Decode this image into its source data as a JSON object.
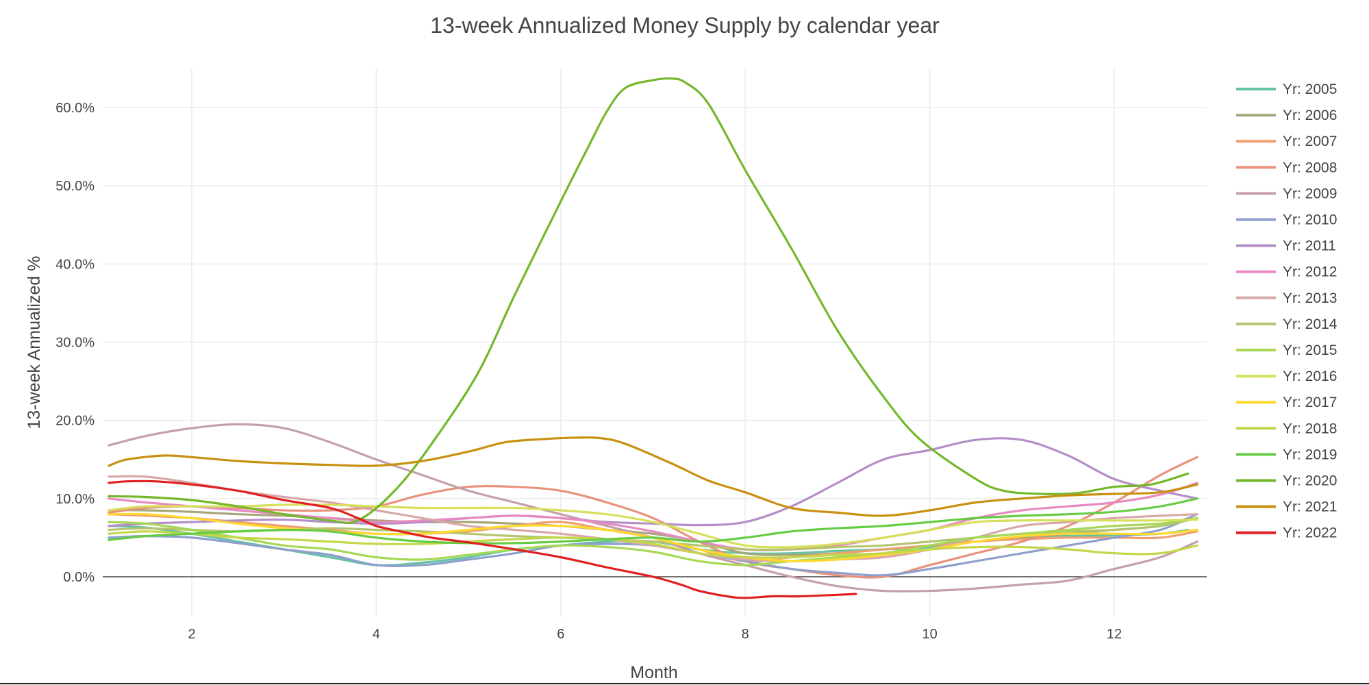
{
  "chart_data": {
    "type": "line",
    "title": "13-week Annualized Money Supply by calendar year",
    "xlabel": "Month",
    "ylabel": "13-week Annualized %",
    "xlim": [
      1.0,
      13.0
    ],
    "ylim": [
      -0.05,
      0.64
    ],
    "xticks": [
      2,
      4,
      6,
      8,
      10,
      12
    ],
    "xtick_labels": [
      "2",
      "4",
      "6",
      "8",
      "10",
      "12"
    ],
    "yticks": [
      0,
      0.1,
      0.2,
      0.3,
      0.4,
      0.5,
      0.6
    ],
    "ytick_labels": [
      "0.0%",
      "10.0%",
      "20.0%",
      "30.0%",
      "40.0%",
      "50.0%",
      "60.0%"
    ],
    "grid": true,
    "legend_position": "right",
    "series": [
      {
        "name": "Yr: 2005",
        "color": "#66c2a5",
        "x": [
          1.1,
          1.5,
          2,
          2.5,
          3,
          3.5,
          4,
          4.5,
          5,
          5.5,
          6,
          6.5,
          7,
          7.5,
          8,
          8.5,
          9,
          9.5,
          10,
          10.5,
          11,
          11.5,
          12,
          12.5,
          12.8
        ],
        "y": [
          0.065,
          0.063,
          0.055,
          0.045,
          0.035,
          0.025,
          0.015,
          0.018,
          0.025,
          0.035,
          0.04,
          0.045,
          0.045,
          0.035,
          0.03,
          0.03,
          0.033,
          0.035,
          0.038,
          0.045,
          0.05,
          0.052,
          0.053,
          0.055,
          0.06
        ]
      },
      {
        "name": "Yr: 2006",
        "color": "#a6a67b",
        "x": [
          1.1,
          1.5,
          2,
          2.5,
          3,
          3.5,
          4,
          4.5,
          5,
          5.5,
          6,
          6.5,
          7,
          7.5,
          8,
          8.5,
          9,
          9.5,
          10,
          10.5,
          11,
          11.5,
          12,
          12.5,
          12.8
        ],
        "y": [
          0.085,
          0.085,
          0.083,
          0.08,
          0.078,
          0.075,
          0.072,
          0.07,
          0.07,
          0.068,
          0.065,
          0.06,
          0.055,
          0.045,
          0.03,
          0.028,
          0.03,
          0.035,
          0.04,
          0.045,
          0.05,
          0.055,
          0.06,
          0.065,
          0.075
        ]
      },
      {
        "name": "Yr: 2007",
        "color": "#f0a070",
        "x": [
          1.1,
          1.5,
          2,
          2.5,
          3,
          3.5,
          4,
          4.5,
          5,
          5.5,
          6,
          6.5,
          7,
          7.5,
          8,
          8.5,
          9,
          9.5,
          10,
          10.5,
          11,
          11.5,
          12,
          12.5,
          12.9
        ],
        "y": [
          0.08,
          0.078,
          0.075,
          0.07,
          0.065,
          0.06,
          0.055,
          0.055,
          0.058,
          0.065,
          0.07,
          0.06,
          0.05,
          0.035,
          0.02,
          0.025,
          0.03,
          0.035,
          0.04,
          0.045,
          0.048,
          0.05,
          0.05,
          0.05,
          0.058
        ]
      },
      {
        "name": "Yr: 2008",
        "color": "#e8927c",
        "x": [
          1.1,
          1.5,
          2,
          2.5,
          3,
          3.5,
          4,
          4.5,
          5,
          5.5,
          6,
          6.5,
          7,
          7.5,
          8,
          8.5,
          9,
          9.5,
          10,
          10.5,
          11,
          11.5,
          12,
          12.5,
          12.9
        ],
        "y": [
          0.082,
          0.088,
          0.09,
          0.088,
          0.085,
          0.085,
          0.09,
          0.105,
          0.115,
          0.115,
          0.11,
          0.095,
          0.075,
          0.045,
          0.02,
          0.01,
          0.002,
          0.0,
          0.015,
          0.03,
          0.045,
          0.065,
          0.095,
          0.13,
          0.153
        ]
      },
      {
        "name": "Yr: 2009",
        "color": "#c4a0a8",
        "x": [
          1.1,
          1.5,
          2,
          2.5,
          3,
          3.5,
          4,
          4.5,
          5,
          5.5,
          6,
          6.5,
          7,
          7.5,
          8,
          8.5,
          9,
          9.5,
          10,
          10.5,
          11,
          11.5,
          12,
          12.5,
          12.9
        ],
        "y": [
          0.168,
          0.18,
          0.19,
          0.195,
          0.19,
          0.172,
          0.15,
          0.13,
          0.11,
          0.095,
          0.08,
          0.065,
          0.05,
          0.03,
          0.015,
          0.0,
          -0.012,
          -0.018,
          -0.018,
          -0.015,
          -0.01,
          -0.005,
          0.01,
          0.025,
          0.045
        ]
      },
      {
        "name": "Yr: 2010",
        "color": "#8da0cb",
        "x": [
          1.1,
          1.5,
          2,
          2.5,
          3,
          3.5,
          4,
          4.5,
          5,
          5.5,
          6,
          6.5,
          7,
          7.5,
          8,
          8.5,
          9,
          9.5,
          10,
          10.5,
          11,
          11.5,
          12,
          12.5,
          12.9
        ],
        "y": [
          0.05,
          0.052,
          0.05,
          0.043,
          0.035,
          0.028,
          0.015,
          0.015,
          0.022,
          0.03,
          0.04,
          0.042,
          0.04,
          0.03,
          0.02,
          0.01,
          0.005,
          0.002,
          0.01,
          0.02,
          0.03,
          0.04,
          0.05,
          0.06,
          0.08
        ]
      },
      {
        "name": "Yr: 2011",
        "color": "#b48ec8",
        "x": [
          1.1,
          1.5,
          2,
          2.5,
          3,
          3.5,
          4,
          4.5,
          5,
          5.5,
          6,
          6.5,
          7,
          7.5,
          8,
          8.5,
          9,
          9.5,
          10,
          10.5,
          11,
          11.5,
          12,
          12.5,
          12.9
        ],
        "y": [
          0.065,
          0.068,
          0.07,
          0.072,
          0.073,
          0.07,
          0.068,
          0.07,
          0.075,
          0.078,
          0.075,
          0.07,
          0.068,
          0.066,
          0.07,
          0.09,
          0.12,
          0.15,
          0.162,
          0.175,
          0.175,
          0.155,
          0.125,
          0.11,
          0.1
        ]
      },
      {
        "name": "Yr: 2012",
        "color": "#e78ac3",
        "x": [
          1.1,
          1.5,
          2,
          2.5,
          3,
          3.5,
          4,
          4.5,
          5,
          5.5,
          6,
          6.5,
          7,
          7.5,
          8,
          8.5,
          9,
          9.5,
          10,
          10.5,
          11,
          11.5,
          12,
          12.5,
          12.9
        ],
        "y": [
          0.1,
          0.095,
          0.09,
          0.085,
          0.08,
          0.075,
          0.07,
          0.072,
          0.075,
          0.078,
          0.075,
          0.068,
          0.058,
          0.045,
          0.035,
          0.035,
          0.04,
          0.05,
          0.06,
          0.075,
          0.085,
          0.09,
          0.095,
          0.105,
          0.12
        ]
      },
      {
        "name": "Yr: 2013",
        "color": "#d8a8a8",
        "x": [
          1.1,
          1.5,
          2,
          2.5,
          3,
          3.5,
          4,
          4.5,
          5,
          5.5,
          6,
          6.5,
          7,
          7.5,
          8,
          8.5,
          9,
          9.5,
          10,
          10.5,
          11,
          11.5,
          12,
          12.5,
          12.9
        ],
        "y": [
          0.128,
          0.128,
          0.12,
          0.11,
          0.102,
          0.095,
          0.085,
          0.075,
          0.065,
          0.06,
          0.055,
          0.048,
          0.04,
          0.03,
          0.022,
          0.02,
          0.022,
          0.025,
          0.035,
          0.05,
          0.065,
          0.07,
          0.075,
          0.078,
          0.08
        ]
      },
      {
        "name": "Yr: 2014",
        "color": "#b5c46e",
        "x": [
          1.1,
          1.5,
          2,
          2.5,
          3,
          3.5,
          4,
          4.5,
          5,
          5.5,
          6,
          6.5,
          7,
          7.5,
          8,
          8.5,
          9,
          9.5,
          10,
          10.5,
          11,
          11.5,
          12,
          12.5,
          12.9
        ],
        "y": [
          0.06,
          0.062,
          0.06,
          0.058,
          0.06,
          0.062,
          0.06,
          0.058,
          0.055,
          0.052,
          0.05,
          0.048,
          0.045,
          0.04,
          0.035,
          0.035,
          0.038,
          0.04,
          0.045,
          0.05,
          0.055,
          0.058,
          0.06,
          0.065,
          0.075
        ]
      },
      {
        "name": "Yr: 2015",
        "color": "#a6d854",
        "x": [
          1.1,
          1.5,
          2,
          2.5,
          3,
          3.5,
          4,
          4.5,
          5,
          5.5,
          6,
          6.5,
          7,
          7.5,
          8,
          8.5,
          9,
          9.5,
          10,
          10.5,
          11,
          11.5,
          12,
          12.5,
          12.9
        ],
        "y": [
          0.07,
          0.068,
          0.06,
          0.05,
          0.04,
          0.035,
          0.025,
          0.022,
          0.028,
          0.035,
          0.04,
          0.038,
          0.032,
          0.02,
          0.015,
          0.02,
          0.025,
          0.03,
          0.04,
          0.05,
          0.055,
          0.06,
          0.065,
          0.068,
          0.075
        ]
      },
      {
        "name": "Yr: 2016",
        "color": "#d6e05a",
        "x": [
          1.1,
          1.5,
          2,
          2.5,
          3,
          3.5,
          4,
          4.5,
          5,
          5.5,
          6,
          6.5,
          7,
          7.5,
          8,
          8.5,
          9,
          9.5,
          10,
          10.5,
          11,
          11.5,
          12,
          12.5,
          12.9
        ],
        "y": [
          0.085,
          0.09,
          0.09,
          0.09,
          0.092,
          0.092,
          0.09,
          0.088,
          0.088,
          0.088,
          0.085,
          0.08,
          0.07,
          0.055,
          0.04,
          0.038,
          0.042,
          0.05,
          0.06,
          0.07,
          0.072,
          0.072,
          0.072,
          0.072,
          0.073
        ]
      },
      {
        "name": "Yr: 2017",
        "color": "#ffd92f",
        "x": [
          1.1,
          1.5,
          2,
          2.5,
          3,
          3.5,
          4,
          4.5,
          5,
          5.5,
          6,
          6.5,
          7,
          7.5,
          8,
          8.5,
          9,
          9.5,
          10,
          10.5,
          11,
          11.5,
          12,
          12.5,
          12.9
        ],
        "y": [
          0.08,
          0.08,
          0.075,
          0.068,
          0.062,
          0.058,
          0.055,
          0.055,
          0.06,
          0.065,
          0.065,
          0.06,
          0.05,
          0.035,
          0.025,
          0.02,
          0.022,
          0.028,
          0.035,
          0.045,
          0.052,
          0.055,
          0.055,
          0.055,
          0.06
        ]
      },
      {
        "name": "Yr: 2018",
        "color": "#c5d64a",
        "x": [
          1.1,
          1.5,
          2,
          2.5,
          3,
          3.5,
          4,
          4.5,
          5,
          5.5,
          6,
          6.5,
          7,
          7.5,
          8,
          8.5,
          9,
          9.5,
          10,
          10.5,
          11,
          11.5,
          12,
          12.5,
          12.9
        ],
        "y": [
          0.055,
          0.058,
          0.055,
          0.05,
          0.048,
          0.045,
          0.042,
          0.042,
          0.045,
          0.048,
          0.05,
          0.048,
          0.042,
          0.03,
          0.025,
          0.025,
          0.028,
          0.03,
          0.035,
          0.038,
          0.038,
          0.035,
          0.03,
          0.03,
          0.04
        ]
      },
      {
        "name": "Yr: 2019",
        "color": "#66cc44",
        "x": [
          1.1,
          1.5,
          2,
          2.5,
          3,
          3.5,
          4,
          4.5,
          5,
          5.5,
          6,
          6.5,
          7,
          7.5,
          8,
          8.5,
          9,
          9.5,
          10,
          10.5,
          11,
          11.5,
          12,
          12.5,
          12.9
        ],
        "y": [
          0.047,
          0.052,
          0.055,
          0.058,
          0.06,
          0.058,
          0.05,
          0.045,
          0.043,
          0.043,
          0.045,
          0.048,
          0.05,
          0.045,
          0.05,
          0.058,
          0.062,
          0.065,
          0.07,
          0.075,
          0.078,
          0.08,
          0.083,
          0.09,
          0.1
        ]
      },
      {
        "name": "Yr: 2020",
        "color": "#74b82a",
        "x": [
          1.1,
          1.5,
          2,
          2.5,
          3,
          3.5,
          3.8,
          4.2,
          4.6,
          5.1,
          5.5,
          6,
          6.3,
          6.5,
          6.7,
          7,
          7.2,
          7.35,
          7.6,
          8,
          8.5,
          9,
          9.5,
          9.9,
          10.5,
          10.8,
          11.2,
          11.6,
          12,
          12.4,
          12.8
        ],
        "y": [
          0.103,
          0.102,
          0.098,
          0.09,
          0.08,
          0.072,
          0.072,
          0.11,
          0.17,
          0.26,
          0.36,
          0.48,
          0.55,
          0.595,
          0.625,
          0.635,
          0.637,
          0.632,
          0.605,
          0.52,
          0.42,
          0.315,
          0.23,
          0.175,
          0.125,
          0.11,
          0.106,
          0.107,
          0.115,
          0.118,
          0.132
        ]
      },
      {
        "name": "Yr: 2021",
        "color": "#c8900e",
        "x": [
          1.1,
          1.3,
          1.7,
          2,
          2.5,
          3,
          3.5,
          4,
          4.5,
          5,
          5.4,
          5.8,
          6.2,
          6.45,
          6.7,
          7.2,
          7.6,
          8,
          8.5,
          9,
          9.5,
          10,
          10.5,
          11,
          11.5,
          12,
          12.5,
          12.9
        ],
        "y": [
          0.142,
          0.15,
          0.155,
          0.153,
          0.148,
          0.145,
          0.143,
          0.142,
          0.148,
          0.16,
          0.172,
          0.176,
          0.178,
          0.177,
          0.17,
          0.145,
          0.123,
          0.108,
          0.088,
          0.082,
          0.078,
          0.085,
          0.095,
          0.1,
          0.104,
          0.106,
          0.108,
          0.118
        ]
      },
      {
        "name": "Yr: 2022",
        "color": "#e02020",
        "x": [
          1.1,
          1.3,
          1.6,
          2,
          2.5,
          3,
          3.5,
          3.8,
          4,
          4.3,
          4.6,
          5,
          5.5,
          6,
          6.5,
          7,
          7.3,
          7.5,
          7.8,
          8,
          8.3,
          8.6,
          9,
          9.2
        ],
        "y": [
          0.12,
          0.122,
          0.122,
          0.118,
          0.11,
          0.098,
          0.088,
          0.075,
          0.065,
          0.057,
          0.05,
          0.044,
          0.035,
          0.025,
          0.012,
          0.0,
          -0.01,
          -0.018,
          -0.025,
          -0.027,
          -0.025,
          -0.025,
          -0.023,
          -0.022
        ]
      }
    ]
  }
}
